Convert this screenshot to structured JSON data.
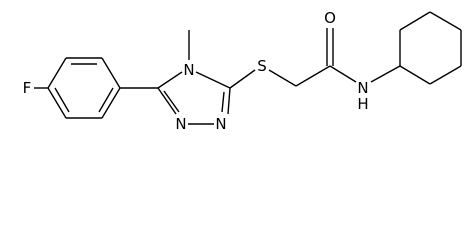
{
  "atoms": [
    {
      "label": "F"
    },
    {
      "label": "N"
    },
    {
      "label": "N"
    },
    {
      "label": "N"
    },
    {
      "label": "S"
    },
    {
      "label": "O"
    },
    {
      "label": "N"
    },
    {
      "label": "H"
    }
  ]
}
